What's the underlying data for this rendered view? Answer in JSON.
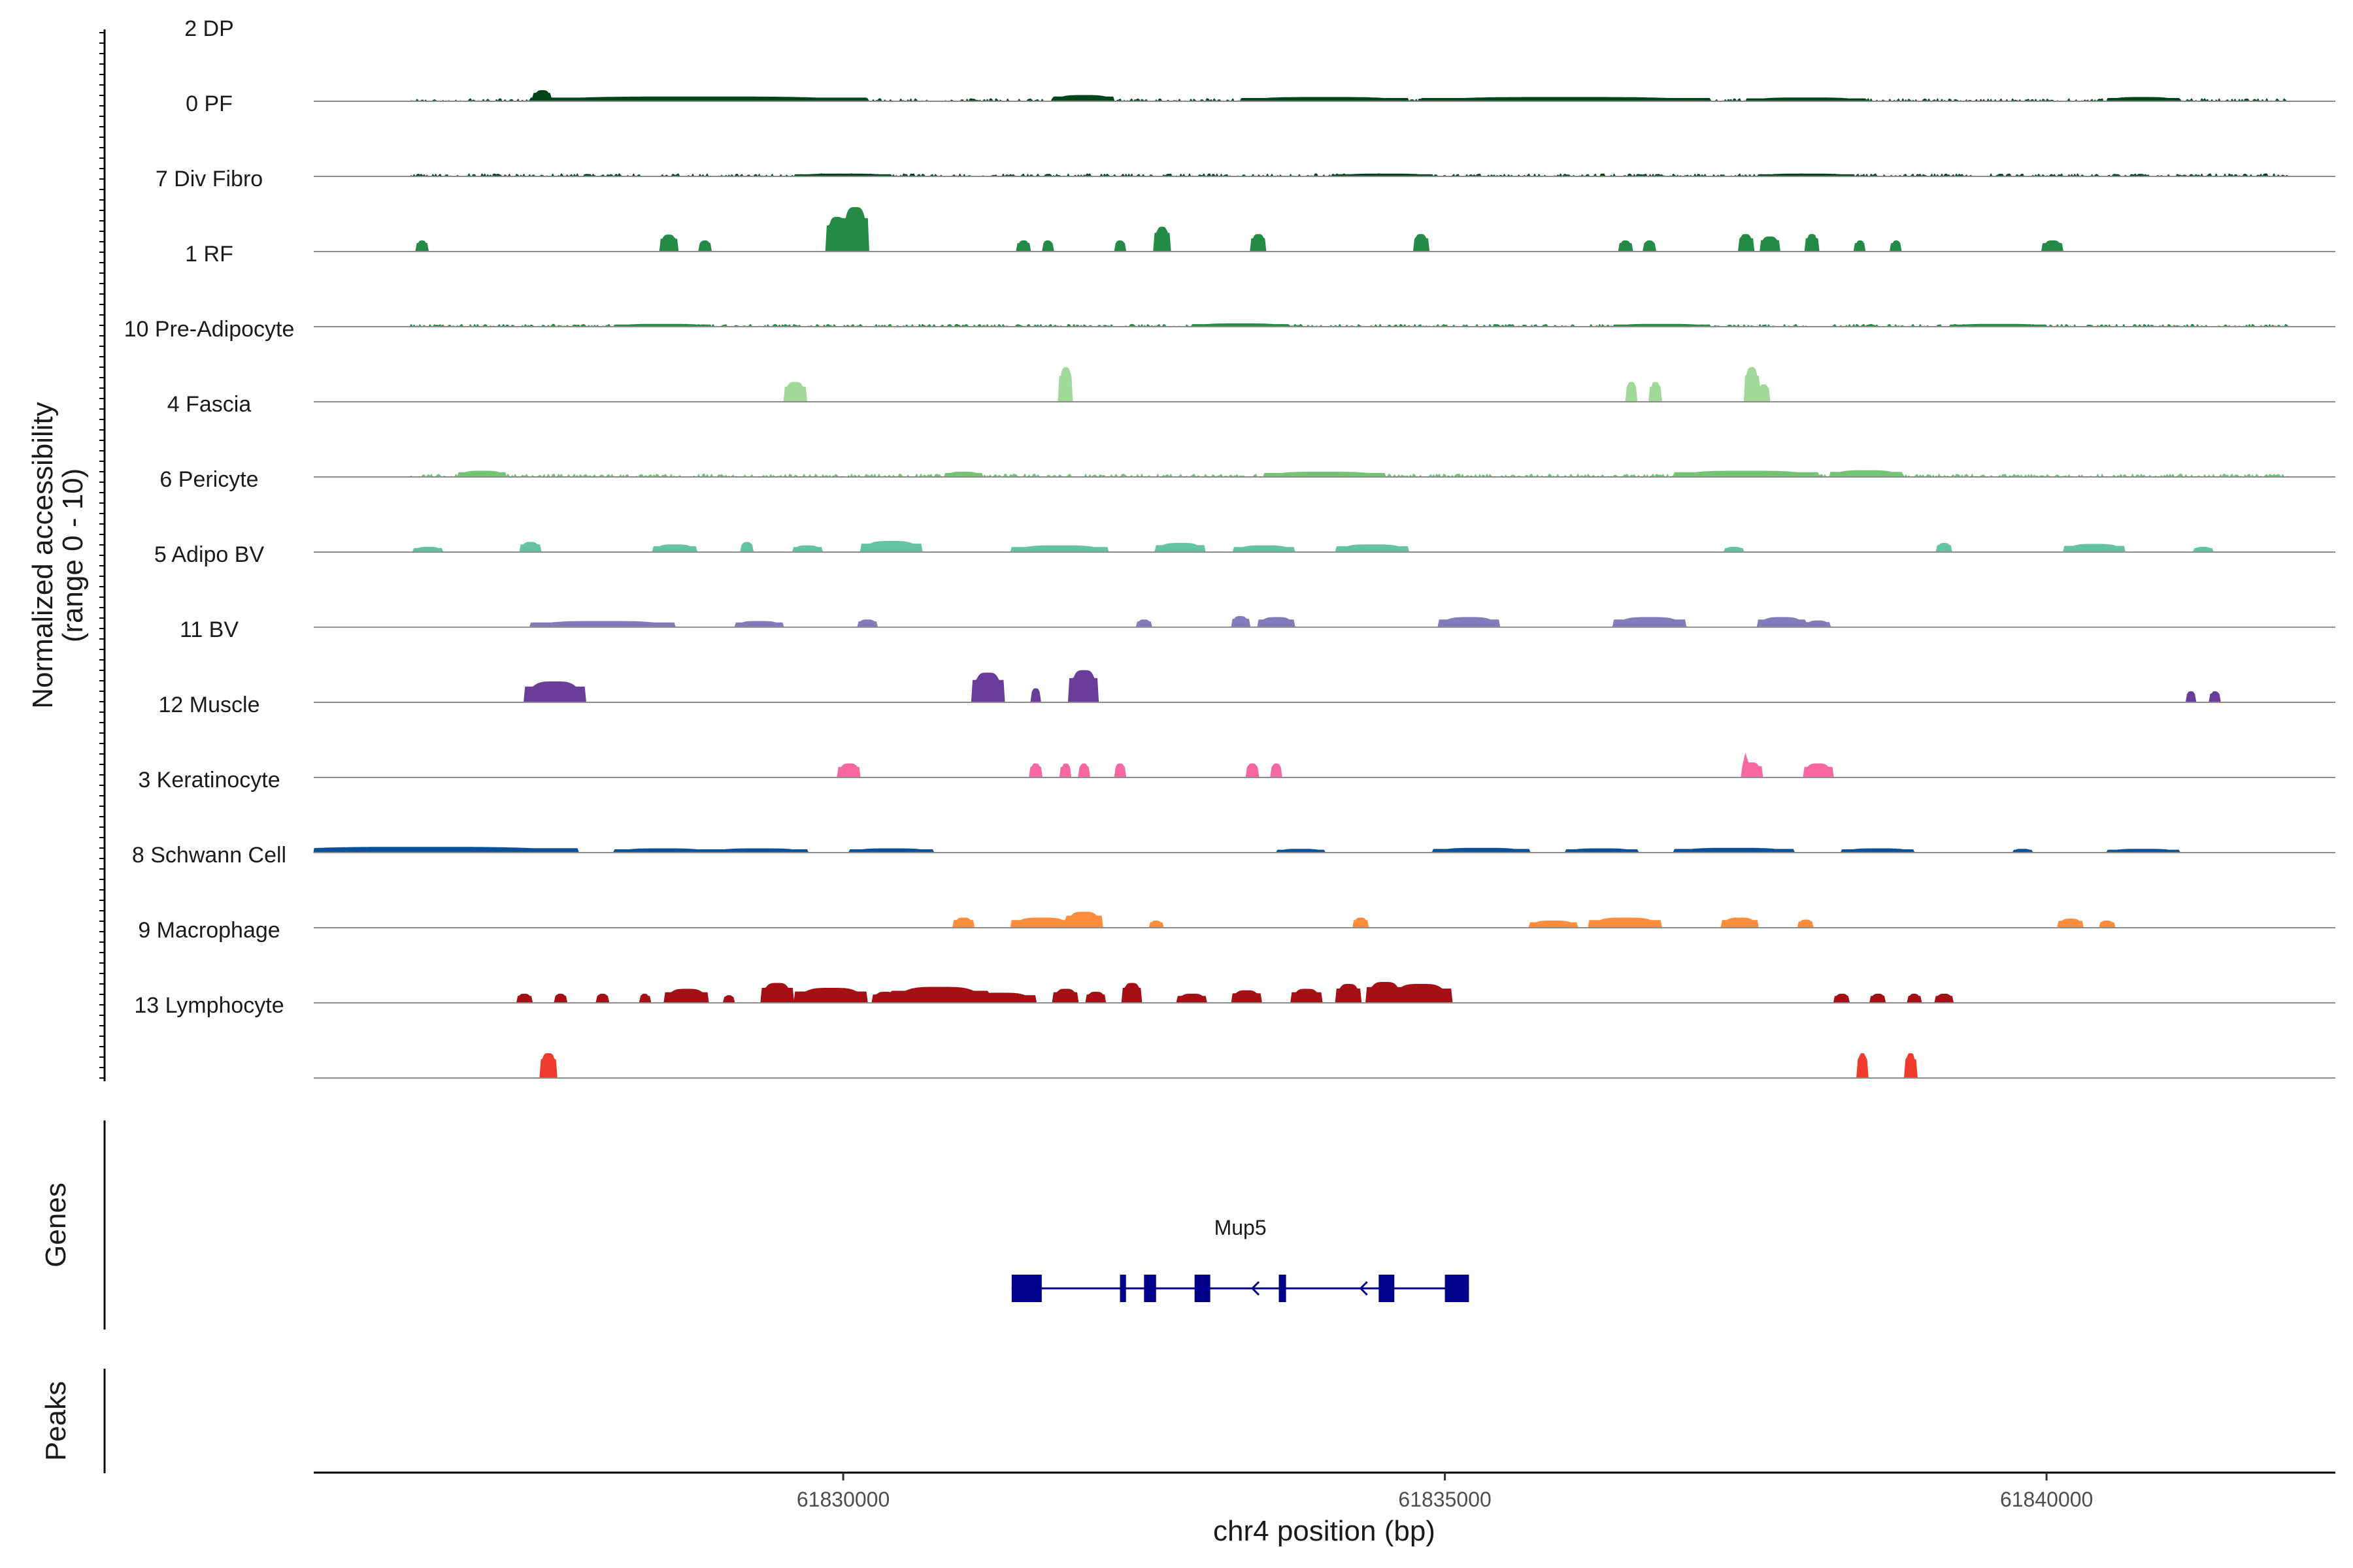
{
  "chart_data": {
    "type": "coverage",
    "chromosome": "chr4",
    "xlim": [
      61825600,
      61842400
    ],
    "ylim": [
      0,
      10
    ],
    "ylabel_line1": "Normalized accessibility",
    "ylabel_line2": "(range 0 - 10)",
    "xlabel": "chr4 position (bp)",
    "xticks": [
      61830000,
      61835000,
      61840000
    ],
    "xtick_labels": [
      "61830000",
      "61835000",
      "61840000"
    ],
    "genes_panel_label": "Genes",
    "peaks_panel_label": "Peaks",
    "tracks": [
      {
        "name": "2 DP",
        "color": "#00441b",
        "noise": 0.55,
        "seed": 11,
        "peaks": [
          [
            61827500,
            70,
            2.2
          ],
          [
            61828800,
            1400,
            0.9
          ],
          [
            61832000,
            250,
            1.2
          ],
          [
            61834000,
            700,
            0.8
          ],
          [
            61836000,
            1200,
            0.8
          ],
          [
            61838000,
            500,
            0.7
          ],
          [
            61840800,
            300,
            0.8
          ]
        ]
      },
      {
        "name": "0 PF",
        "color": "#00441b",
        "noise": 0.55,
        "seed": 23,
        "peaks": [
          [
            61830000,
            400,
            0.5
          ],
          [
            61834500,
            400,
            0.5
          ],
          [
            61838000,
            400,
            0.5
          ]
        ]
      },
      {
        "name": "7 Div Fibro",
        "color": "#238b45",
        "noise": 0,
        "seed": 37,
        "peaks": [
          [
            61826500,
            45,
            2.2
          ],
          [
            61828550,
            70,
            3.4
          ],
          [
            61828850,
            50,
            2.2
          ],
          [
            61829950,
            90,
            7.0
          ],
          [
            61830100,
            110,
            9.0
          ],
          [
            61831500,
            50,
            2.2
          ],
          [
            61831700,
            45,
            2.2
          ],
          [
            61832300,
            45,
            2.2
          ],
          [
            61832650,
            60,
            5.0
          ],
          [
            61833450,
            60,
            3.5
          ],
          [
            61834800,
            60,
            3.5
          ],
          [
            61836500,
            50,
            2.2
          ],
          [
            61836700,
            50,
            2.2
          ],
          [
            61837500,
            60,
            3.5
          ],
          [
            61837700,
            80,
            3.0
          ],
          [
            61838050,
            50,
            3.5
          ],
          [
            61838450,
            40,
            2.2
          ],
          [
            61838750,
            40,
            2.2
          ],
          [
            61840050,
            80,
            2.2
          ]
        ]
      },
      {
        "name": "1 RF",
        "color": "#238b45",
        "noise": 0.5,
        "seed": 41,
        "peaks": [
          [
            61828500,
            400,
            0.5
          ],
          [
            61833300,
            400,
            0.6
          ],
          [
            61836800,
            400,
            0.5
          ],
          [
            61839600,
            400,
            0.5
          ]
        ]
      },
      {
        "name": "10 Pre-Adipocyte",
        "color": "#a1d99b",
        "noise": 0,
        "seed": 53,
        "peaks": [
          [
            61829600,
            90,
            4.0
          ],
          [
            61831850,
            55,
            7.0
          ],
          [
            61836550,
            45,
            4.0
          ],
          [
            61836750,
            45,
            4.0
          ],
          [
            61837550,
            60,
            7.0
          ],
          [
            61837650,
            50,
            3.5
          ]
        ]
      },
      {
        "name": "4 Fascia",
        "color": "#74c476",
        "noise": 0.6,
        "seed": 67,
        "peaks": [
          [
            61827000,
            200,
            1.2
          ],
          [
            61831000,
            150,
            1.0
          ],
          [
            61834000,
            500,
            1.0
          ],
          [
            61837500,
            600,
            1.2
          ],
          [
            61838500,
            300,
            1.3
          ]
        ]
      },
      {
        "name": "6 Pericyte",
        "color": "#66c2a4",
        "noise": 0,
        "seed": 79,
        "peaks": [
          [
            61826550,
            120,
            1.0
          ],
          [
            61827400,
            80,
            2.0
          ],
          [
            61828600,
            180,
            1.5
          ],
          [
            61829200,
            50,
            2.0
          ],
          [
            61829700,
            120,
            1.3
          ],
          [
            61830400,
            250,
            2.2
          ],
          [
            61831800,
            400,
            1.3
          ],
          [
            61832800,
            200,
            1.8
          ],
          [
            61833500,
            250,
            1.3
          ],
          [
            61834400,
            300,
            1.5
          ],
          [
            61837400,
            80,
            1.0
          ],
          [
            61839150,
            60,
            1.8
          ],
          [
            61840400,
            250,
            1.6
          ],
          [
            61841300,
            80,
            1.0
          ]
        ]
      },
      {
        "name": "5 Adipo BV",
        "color": "#807dba",
        "noise": 0,
        "seed": 83,
        "peaks": [
          [
            61828000,
            600,
            1.2
          ],
          [
            61829300,
            200,
            1.2
          ],
          [
            61830200,
            80,
            1.5
          ],
          [
            61832500,
            60,
            1.5
          ],
          [
            61833300,
            70,
            2.2
          ],
          [
            61833600,
            150,
            2.0
          ],
          [
            61835200,
            250,
            2.0
          ],
          [
            61836700,
            300,
            2.0
          ],
          [
            61837800,
            200,
            2.0
          ],
          [
            61838100,
            100,
            1.3
          ]
        ]
      },
      {
        "name": "11 BV",
        "color": "#6a3d9a",
        "noise": 0,
        "seed": 97,
        "peaks": [
          [
            61827600,
            250,
            4.2
          ],
          [
            61831200,
            130,
            6.0
          ],
          [
            61831600,
            40,
            2.8
          ],
          [
            61832000,
            120,
            6.5
          ],
          [
            61841200,
            40,
            2.2
          ],
          [
            61841400,
            40,
            2.2
          ]
        ]
      },
      {
        "name": "12 Muscle",
        "color": "#f768a1",
        "noise": 0,
        "seed": 101,
        "peaks": [
          [
            61830050,
            90,
            2.8
          ],
          [
            61831600,
            45,
            2.8
          ],
          [
            61831850,
            40,
            2.8
          ],
          [
            61832000,
            40,
            2.8
          ],
          [
            61832300,
            45,
            2.8
          ],
          [
            61833400,
            50,
            2.8
          ],
          [
            61833600,
            45,
            2.8
          ],
          [
            61837550,
            80,
            3.0
          ],
          [
            61837500,
            15,
            4.8
          ],
          [
            61838100,
            120,
            2.8
          ]
        ]
      },
      {
        "name": "3 Keratinocyte",
        "color": "#08519c",
        "noise": 0,
        "seed": 113,
        "peaks": [
          [
            61826500,
            1300,
            1.1
          ],
          [
            61828500,
            400,
            0.8
          ],
          [
            61829300,
            400,
            0.8
          ],
          [
            61830400,
            350,
            0.8
          ],
          [
            61833800,
            200,
            0.7
          ],
          [
            61835300,
            400,
            0.9
          ],
          [
            61836300,
            300,
            0.8
          ],
          [
            61837400,
            500,
            0.9
          ],
          [
            61838600,
            300,
            0.8
          ],
          [
            61839800,
            80,
            0.7
          ],
          [
            61840800,
            300,
            0.7
          ]
        ]
      },
      {
        "name": "8 Schwann Cell",
        "color": "#fd8d3c",
        "noise": 0,
        "seed": 127,
        "peaks": [
          [
            61831000,
            80,
            2.0
          ],
          [
            61831650,
            250,
            2.0
          ],
          [
            61832000,
            150,
            3.2
          ],
          [
            61832600,
            50,
            1.4
          ],
          [
            61834300,
            60,
            2.0
          ],
          [
            61835900,
            200,
            1.4
          ],
          [
            61836500,
            300,
            2.0
          ],
          [
            61837450,
            150,
            2.0
          ],
          [
            61838000,
            60,
            1.6
          ],
          [
            61840200,
            100,
            1.8
          ],
          [
            61840500,
            60,
            1.4
          ]
        ]
      },
      {
        "name": "9 Macrophage",
        "color": "#a50f15",
        "noise": 0,
        "seed": 131,
        "peaks": [
          [
            61827350,
            60,
            1.8
          ],
          [
            61827650,
            50,
            1.8
          ],
          [
            61828000,
            50,
            1.8
          ],
          [
            61828350,
            40,
            1.8
          ],
          [
            61828700,
            180,
            2.8
          ],
          [
            61829050,
            40,
            1.5
          ],
          [
            61829450,
            130,
            4.0
          ],
          [
            61829900,
            300,
            3.0
          ],
          [
            61830350,
            100,
            2.2
          ],
          [
            61830800,
            400,
            3.2
          ],
          [
            61831300,
            300,
            2.0
          ],
          [
            61831850,
            100,
            2.8
          ],
          [
            61832100,
            80,
            2.2
          ],
          [
            61832400,
            80,
            4.0
          ],
          [
            61832900,
            120,
            1.8
          ],
          [
            61833350,
            120,
            2.5
          ],
          [
            61833850,
            120,
            2.8
          ],
          [
            61834200,
            100,
            3.8
          ],
          [
            61834500,
            150,
            4.2
          ],
          [
            61834800,
            250,
            3.8
          ],
          [
            61838300,
            60,
            1.8
          ],
          [
            61838600,
            60,
            1.8
          ],
          [
            61838900,
            50,
            1.8
          ],
          [
            61839150,
            70,
            1.8
          ]
        ]
      },
      {
        "name": "13 Lymphocyte",
        "color": "#ef3b2c",
        "noise": 0,
        "seed": 139,
        "peaks": [
          [
            61827550,
            70,
            5.0
          ],
          [
            61838470,
            40,
            5.0
          ],
          [
            61838870,
            45,
            5.0
          ]
        ]
      }
    ],
    "genes": [
      {
        "name": "Mup5",
        "strand": "-",
        "start": 61831400,
        "end": 61835200,
        "exons": [
          [
            61831400,
            61831650
          ],
          [
            61832300,
            61832350
          ],
          [
            61832500,
            61832600
          ],
          [
            61832920,
            61833050
          ],
          [
            61833620,
            61833680
          ],
          [
            61834450,
            61834580
          ],
          [
            61835000,
            61835200
          ]
        ]
      }
    ],
    "peaks_track": []
  }
}
